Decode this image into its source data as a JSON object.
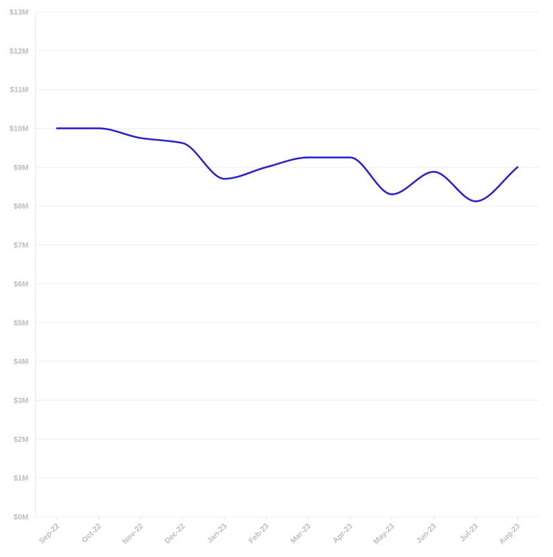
{
  "colors": {
    "series": "#2b22c9",
    "grid": "#eeeeee",
    "tick_text": "#bdbdbd"
  },
  "chart_data": {
    "type": "line",
    "title": "",
    "xlabel": "",
    "ylabel": "",
    "categories": [
      "Sep-22",
      "Oct-22",
      "Nov-22",
      "Dec-22",
      "Jan-23",
      "Feb-23",
      "Mar-23",
      "Apr-23",
      "May-23",
      "Jun-23",
      "Jul-23",
      "Aug-23"
    ],
    "series": [
      {
        "values": [
          10.0,
          10.0,
          9.75,
          9.62,
          8.7,
          9.0,
          9.25,
          9.25,
          8.3,
          8.88,
          8.12,
          9.0
        ]
      }
    ],
    "ylim": [
      0,
      13
    ],
    "y_ticks": [
      {
        "value": 0,
        "label": "$0M"
      },
      {
        "value": 1,
        "label": "$1M"
      },
      {
        "value": 2,
        "label": "$2M"
      },
      {
        "value": 3,
        "label": "$3M"
      },
      {
        "value": 4,
        "label": "$4M"
      },
      {
        "value": 5,
        "label": "$5M"
      },
      {
        "value": 6,
        "label": "$6M"
      },
      {
        "value": 7,
        "label": "$7M"
      },
      {
        "value": 8,
        "label": "$8M"
      },
      {
        "value": 9,
        "label": "$9M"
      },
      {
        "value": 10,
        "label": "$10M"
      },
      {
        "value": 11,
        "label": "$11M"
      },
      {
        "value": 12,
        "label": "$12M"
      },
      {
        "value": 13,
        "label": "$13M"
      }
    ],
    "grid": true,
    "legend": "none",
    "curve": "smooth"
  }
}
